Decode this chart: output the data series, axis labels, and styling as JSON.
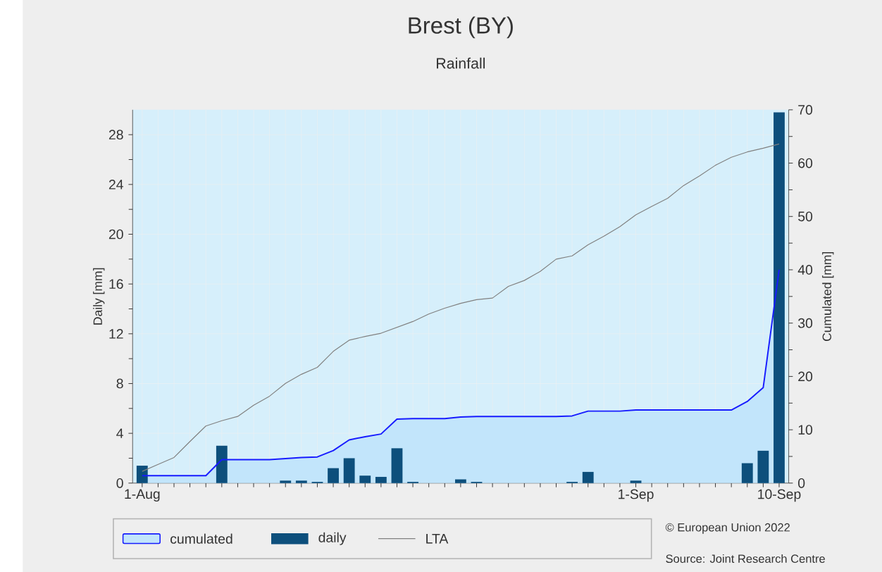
{
  "chart_data": {
    "type": "bar",
    "title": "Brest (BY)",
    "subtitle": "Rainfall",
    "ylabel": "Daily [mm]",
    "y2label": "Cumulated [mm]",
    "categories": [
      "1-Aug",
      null,
      null,
      null,
      null,
      null,
      null,
      null,
      null,
      null,
      null,
      null,
      null,
      null,
      null,
      null,
      null,
      null,
      null,
      null,
      null,
      null,
      null,
      null,
      null,
      null,
      null,
      null,
      null,
      null,
      null,
      "1-Sep",
      null,
      null,
      null,
      null,
      null,
      null,
      null,
      null,
      "10-Sep"
    ],
    "ylim": [
      0,
      30
    ],
    "yticks": [
      0,
      4,
      8,
      12,
      16,
      20,
      24,
      28
    ],
    "y2lim": [
      0,
      70
    ],
    "y2ticks": [
      0,
      10,
      20,
      30,
      40,
      50,
      60,
      70
    ],
    "grid": true,
    "legend": "bottom",
    "series": [
      {
        "name": "cumulated",
        "type": "area",
        "axis": "y2",
        "color": "#c2e5fb",
        "values": [
          1.4,
          1.4,
          1.4,
          1.4,
          1.4,
          4.4,
          4.4,
          4.4,
          4.4,
          4.6,
          4.8,
          4.9,
          6.1,
          8.1,
          8.7,
          9.2,
          12.0,
          12.1,
          12.1,
          12.1,
          12.4,
          12.5,
          12.5,
          12.5,
          12.5,
          12.5,
          12.5,
          12.6,
          13.5,
          13.5,
          13.5,
          13.7,
          13.7,
          13.7,
          13.7,
          13.7,
          13.7,
          13.7,
          15.3,
          17.9,
          40
        ]
      },
      {
        "name": "daily",
        "color": "#0d4f7c",
        "values": [
          1.4,
          0,
          0,
          0,
          0,
          3.0,
          0,
          0,
          0,
          0.2,
          0.2,
          0.1,
          1.2,
          2.0,
          0.6,
          0.5,
          2.8,
          0.1,
          0,
          0,
          0.3,
          0.1,
          0,
          0,
          0,
          0,
          0,
          0.1,
          0.9,
          0,
          0,
          0.2,
          0,
          0,
          0,
          0,
          0,
          0,
          1.6,
          2.6,
          29.8
        ]
      },
      {
        "name": "LTA",
        "type": "line",
        "axis": "y2",
        "color": "#808080",
        "values": [
          2.2,
          3.5,
          4.8,
          7.8,
          10.7,
          11.7,
          12.5,
          14.6,
          16.3,
          18.7,
          20.4,
          21.7,
          24.7,
          26.8,
          27.5,
          28.1,
          29.2,
          30.3,
          31.7,
          32.8,
          33.7,
          34.4,
          34.7,
          36.9,
          38.0,
          39.7,
          42.0,
          42.6,
          44.7,
          46.3,
          48.1,
          50.3,
          51.9,
          53.4,
          55.8,
          57.6,
          59.6,
          61.1,
          62.1,
          62.8,
          63.6
        ]
      }
    ],
    "annotations": [
      "© European Union 2022",
      "Source: Joint Research Centre"
    ]
  }
}
